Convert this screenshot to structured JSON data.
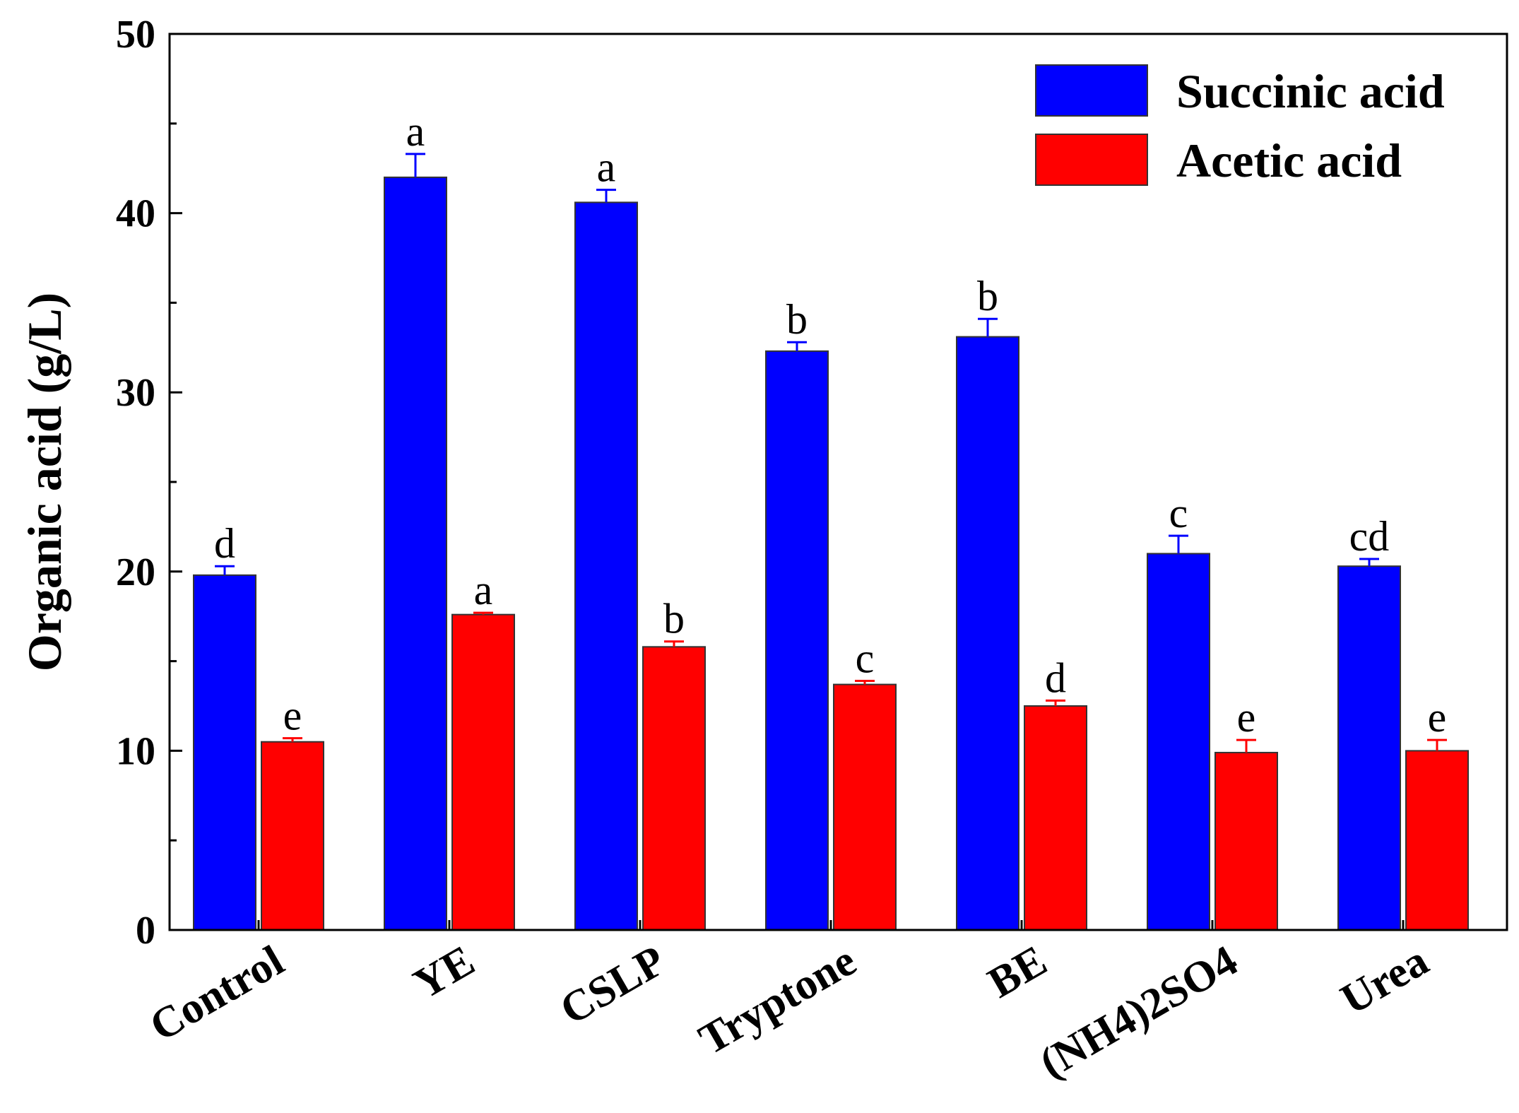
{
  "chart_data": {
    "type": "bar",
    "title": "",
    "xlabel": "",
    "ylabel": "Organic acid (g/L)",
    "ylim": [
      0,
      50
    ],
    "yticks": [
      0,
      10,
      20,
      30,
      40,
      50
    ],
    "categories": [
      "Control",
      "YE",
      "CSLP",
      "Tryptone",
      "BE",
      "(NH4)2SO4",
      "Urea"
    ],
    "series": [
      {
        "name": "Succinic acid",
        "color": "#0000ff",
        "values": [
          19.8,
          42.0,
          40.6,
          32.3,
          33.1,
          21.0,
          20.3
        ],
        "errors": [
          0.5,
          1.3,
          0.7,
          0.5,
          1.0,
          1.0,
          0.4
        ],
        "labels": [
          "d",
          "a",
          "a",
          "b",
          "b",
          "c",
          "cd"
        ]
      },
      {
        "name": "Acetic acid",
        "color": "#ff0000",
        "values": [
          10.5,
          17.6,
          15.8,
          13.7,
          12.5,
          9.9,
          10.0
        ],
        "errors": [
          0.2,
          0.1,
          0.3,
          0.2,
          0.3,
          0.7,
          0.6
        ],
        "labels": [
          "e",
          "a",
          "b",
          "c",
          "d",
          "e",
          "e"
        ]
      }
    ],
    "legend": {
      "position": "top-right"
    }
  }
}
